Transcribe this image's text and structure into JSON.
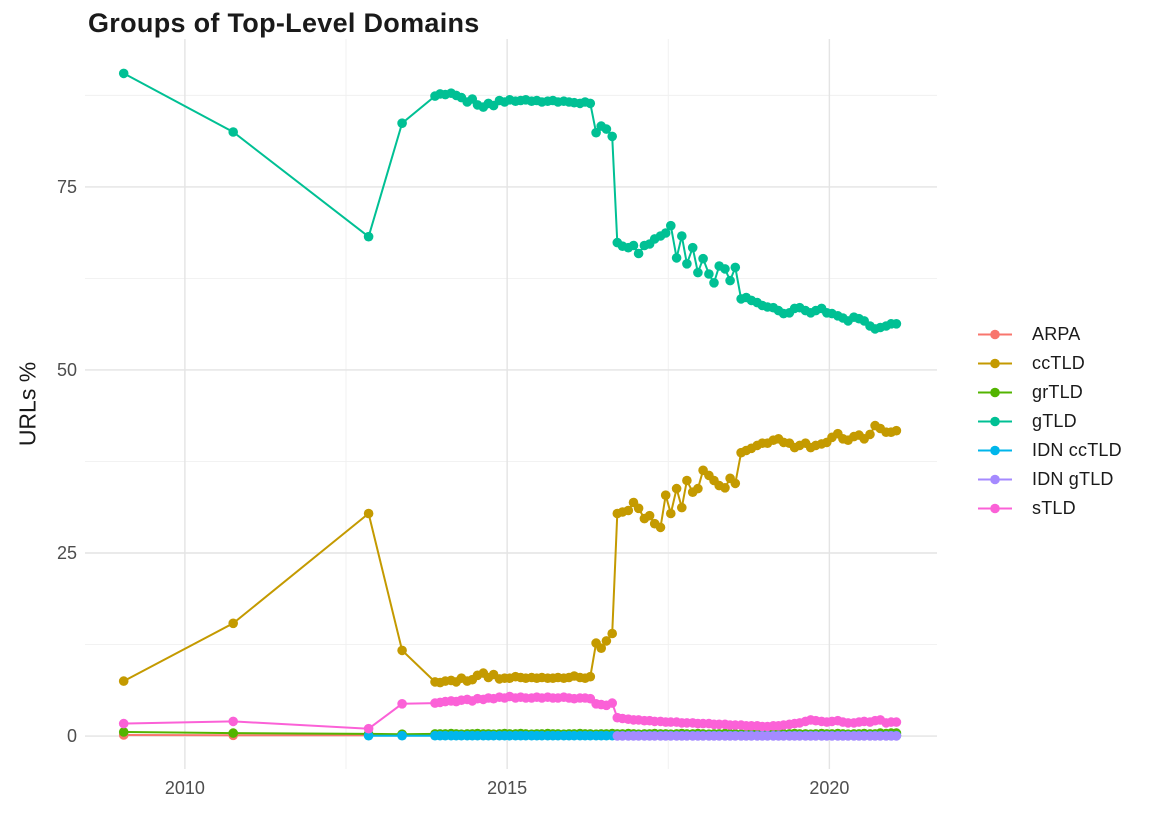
{
  "chart_data": {
    "type": "line",
    "title": "Groups of Top-Level Domains",
    "xlabel": "",
    "ylabel": "URLs %",
    "grid": true,
    "legend_position": "right",
    "xlim": [
      2008.45,
      2021.67
    ],
    "ylim": [
      -4.5,
      95.2
    ],
    "x_axis": {
      "ticks": [
        {
          "v": 2010,
          "label": "2010"
        },
        {
          "v": 2015,
          "label": "2015"
        },
        {
          "v": 2020,
          "label": "2020"
        }
      ],
      "minor": [
        2012.5,
        2017.5
      ]
    },
    "y_axis": {
      "title": "URLs %",
      "ticks": [
        {
          "v": 0,
          "label": "0"
        },
        {
          "v": 25,
          "label": "25"
        },
        {
          "v": 50,
          "label": "50"
        },
        {
          "v": 75,
          "label": "75"
        }
      ],
      "minor": [
        12.5,
        37.5,
        62.5,
        87.5
      ]
    },
    "x": [
      2009.05,
      2010.75,
      2012.85,
      2013.37,
      2013.88,
      2013.96,
      2014.04,
      2014.13,
      2014.21,
      2014.29,
      2014.38,
      2014.46,
      2014.54,
      2014.63,
      2014.71,
      2014.79,
      2014.88,
      2014.96,
      2015.04,
      2015.13,
      2015.21,
      2015.29,
      2015.38,
      2015.46,
      2015.54,
      2015.63,
      2015.71,
      2015.79,
      2015.88,
      2015.96,
      2016.04,
      2016.13,
      2016.21,
      2016.29,
      2016.38,
      2016.46,
      2016.54,
      2016.63,
      2016.71,
      2016.79,
      2016.88,
      2016.96,
      2017.04,
      2017.13,
      2017.21,
      2017.29,
      2017.38,
      2017.46,
      2017.54,
      2017.63,
      2017.71,
      2017.79,
      2017.88,
      2017.96,
      2018.04,
      2018.13,
      2018.21,
      2018.29,
      2018.38,
      2018.46,
      2018.54,
      2018.63,
      2018.71,
      2018.79,
      2018.88,
      2018.96,
      2019.04,
      2019.13,
      2019.21,
      2019.29,
      2019.38,
      2019.46,
      2019.54,
      2019.63,
      2019.71,
      2019.79,
      2019.88,
      2019.96,
      2020.04,
      2020.13,
      2020.21,
      2020.29,
      2020.38,
      2020.46,
      2020.54,
      2020.63,
      2020.71,
      2020.79,
      2020.88,
      2020.96,
      2021.04
    ],
    "series": [
      {
        "name": "ARPA",
        "color": "#F8766D",
        "values": [
          0.15,
          0.1,
          0.1,
          0.1,
          0.1,
          0.1,
          0.1,
          0.1,
          0.1,
          0.1,
          0.1,
          0.1,
          0.1,
          0.1,
          0.1,
          0.1,
          0.1,
          0.1,
          0.1,
          0.1,
          0.1,
          0.1,
          0.1,
          0.1,
          0.1,
          0.1,
          0.1,
          0.1,
          0.1,
          0.1,
          0.1,
          0.1,
          0.1,
          0.1,
          0.1,
          0.1,
          0.1,
          0.1,
          0.1,
          0.1,
          0.1,
          0.1,
          0.1,
          0.1,
          0.1,
          0.1,
          0.1,
          0.1,
          0.1,
          0.1,
          0.1,
          0.1,
          0.1,
          0.1,
          0.1,
          0.1,
          0.1,
          0.1,
          0.1,
          0.1,
          0.1,
          0.1,
          0.1,
          0.1,
          0.1,
          0.1,
          0.1,
          0.1,
          0.1,
          0.1,
          0.1,
          0.1,
          0.1,
          0.1,
          0.1,
          0.1,
          0.1,
          0.1,
          0.1,
          0.1,
          0.1,
          0.1,
          0.1,
          0.1,
          0.1,
          0.1,
          0.1,
          0.1,
          0.1,
          0.1,
          0.1
        ]
      },
      {
        "name": "ccTLD",
        "color": "#C49A00",
        "values": [
          7.5,
          15.4,
          30.4,
          11.7,
          7.4,
          7.3,
          7.5,
          7.6,
          7.4,
          7.9,
          7.5,
          7.7,
          8.3,
          8.6,
          8.0,
          8.4,
          7.8,
          7.9,
          7.9,
          8.1,
          8.0,
          7.9,
          8.0,
          7.9,
          8.0,
          7.9,
          7.9,
          8.0,
          7.9,
          8.0,
          8.2,
          8.0,
          7.9,
          8.1,
          12.7,
          12.0,
          13.0,
          14.0,
          30.4,
          30.6,
          30.8,
          31.9,
          31.1,
          29.7,
          30.1,
          29.0,
          28.5,
          32.9,
          30.4,
          33.8,
          31.2,
          34.9,
          33.3,
          33.8,
          36.3,
          35.6,
          34.9,
          34.2,
          33.9,
          35.2,
          34.5,
          38.7,
          39.0,
          39.3,
          39.7,
          40.0,
          40.0,
          40.4,
          40.6,
          40.1,
          40.0,
          39.4,
          39.7,
          40.0,
          39.4,
          39.7,
          39.9,
          40.1,
          40.8,
          41.3,
          40.6,
          40.4,
          40.9,
          41.1,
          40.6,
          41.2,
          42.4,
          42.0,
          41.5,
          41.5,
          41.7
        ]
      },
      {
        "name": "grTLD",
        "color": "#53B400",
        "values": [
          0.55,
          0.4,
          0.3,
          0.25,
          0.3,
          0.3,
          0.3,
          0.35,
          0.3,
          0.25,
          0.3,
          0.3,
          0.35,
          0.3,
          0.3,
          0.25,
          0.3,
          0.35,
          0.3,
          0.3,
          0.35,
          0.3,
          0.25,
          0.3,
          0.3,
          0.35,
          0.3,
          0.3,
          0.25,
          0.3,
          0.3,
          0.35,
          0.3,
          0.3,
          0.25,
          0.3,
          0.3,
          0.35,
          0.3,
          0.3,
          0.35,
          0.3,
          0.25,
          0.3,
          0.3,
          0.35,
          0.3,
          0.3,
          0.25,
          0.3,
          0.35,
          0.3,
          0.3,
          0.35,
          0.3,
          0.25,
          0.3,
          0.3,
          0.35,
          0.3,
          0.3,
          0.25,
          0.3,
          0.35,
          0.3,
          0.3,
          0.35,
          0.3,
          0.25,
          0.3,
          0.3,
          0.35,
          0.3,
          0.3,
          0.25,
          0.3,
          0.35,
          0.3,
          0.3,
          0.35,
          0.3,
          0.25,
          0.3,
          0.3,
          0.35,
          0.3,
          0.3,
          0.4,
          0.35,
          0.4,
          0.4
        ]
      },
      {
        "name": "gTLD",
        "color": "#00C094",
        "values": [
          90.5,
          82.5,
          68.2,
          83.7,
          87.4,
          87.7,
          87.6,
          87.8,
          87.5,
          87.2,
          86.6,
          87.0,
          86.2,
          85.9,
          86.4,
          86.1,
          86.8,
          86.6,
          86.9,
          86.7,
          86.8,
          86.9,
          86.7,
          86.8,
          86.6,
          86.7,
          86.8,
          86.6,
          86.7,
          86.6,
          86.5,
          86.4,
          86.6,
          86.4,
          82.4,
          83.3,
          82.9,
          81.9,
          67.4,
          66.9,
          66.7,
          67.0,
          65.9,
          67.0,
          67.2,
          67.9,
          68.3,
          68.7,
          69.7,
          65.3,
          68.3,
          64.5,
          66.7,
          63.3,
          65.2,
          63.1,
          61.9,
          64.2,
          63.8,
          62.2,
          64.0,
          59.7,
          59.9,
          59.5,
          59.2,
          58.8,
          58.6,
          58.5,
          58.1,
          57.7,
          57.8,
          58.4,
          58.5,
          58.1,
          57.8,
          58.1,
          58.4,
          57.8,
          57.7,
          57.4,
          57.1,
          56.7,
          57.2,
          57.0,
          56.7,
          56.0,
          55.6,
          55.8,
          56.0,
          56.3,
          56.3
        ]
      },
      {
        "name": "IDN ccTLD",
        "color": "#00B6EB",
        "values": [
          null,
          null,
          0.05,
          0.05,
          0.05,
          0.05,
          0.05,
          0.05,
          0.05,
          0.05,
          0.05,
          0.05,
          0.05,
          0.05,
          0.05,
          0.05,
          0.05,
          0.05,
          0.05,
          0.05,
          0.05,
          0.05,
          0.05,
          0.05,
          0.05,
          0.05,
          0.05,
          0.05,
          0.05,
          0.05,
          0.05,
          0.05,
          0.05,
          0.05,
          0.05,
          0.05,
          0.05,
          0.05,
          0.05,
          0.05,
          0.05,
          0.05,
          0.05,
          0.05,
          0.05,
          0.05,
          0.05,
          0.05,
          0.05,
          0.05,
          0.05,
          0.05,
          0.05,
          0.05,
          0.05,
          0.05,
          0.05,
          0.05,
          0.05,
          0.05,
          0.05,
          0.05,
          0.05,
          0.05,
          0.05,
          0.05,
          0.05,
          0.05,
          0.05,
          0.05,
          0.05,
          0.05,
          0.05,
          0.05,
          0.05,
          0.05,
          0.05,
          0.05,
          0.05,
          0.05,
          0.05,
          0.05,
          0.05,
          0.05,
          0.05,
          0.05,
          0.05,
          0.05,
          0.05,
          0.05,
          0.05
        ]
      },
      {
        "name": "IDN gTLD",
        "color": "#A58AFF",
        "values": [
          null,
          null,
          null,
          null,
          null,
          null,
          null,
          null,
          null,
          null,
          null,
          null,
          null,
          null,
          null,
          null,
          null,
          null,
          null,
          null,
          null,
          null,
          null,
          null,
          null,
          null,
          null,
          null,
          null,
          null,
          null,
          null,
          null,
          null,
          null,
          null,
          null,
          null,
          0.02,
          0.02,
          0.02,
          0.02,
          0.02,
          0.02,
          0.02,
          0.02,
          0.02,
          0.02,
          0.02,
          0.02,
          0.02,
          0.02,
          0.02,
          0.02,
          0.02,
          0.02,
          0.02,
          0.02,
          0.02,
          0.02,
          0.02,
          0.02,
          0.02,
          0.02,
          0.02,
          0.02,
          0.02,
          0.02,
          0.02,
          0.02,
          0.02,
          0.02,
          0.02,
          0.02,
          0.02,
          0.02,
          0.02,
          0.02,
          0.02,
          0.02,
          0.02,
          0.02,
          0.02,
          0.02,
          0.02,
          0.02,
          0.02,
          0.02,
          0.02,
          0.02,
          0.02
        ]
      },
      {
        "name": "sTLD",
        "color": "#FB61D7",
        "values": [
          1.7,
          2.0,
          1.0,
          4.4,
          4.5,
          4.6,
          4.7,
          4.8,
          4.7,
          4.9,
          5.0,
          4.8,
          5.1,
          5.0,
          5.2,
          5.1,
          5.3,
          5.2,
          5.4,
          5.2,
          5.3,
          5.2,
          5.2,
          5.3,
          5.2,
          5.3,
          5.2,
          5.2,
          5.3,
          5.2,
          5.1,
          5.2,
          5.2,
          5.1,
          4.4,
          4.3,
          4.2,
          4.5,
          2.5,
          2.4,
          2.3,
          2.2,
          2.2,
          2.1,
          2.1,
          2.0,
          2.0,
          1.9,
          1.9,
          1.9,
          1.8,
          1.8,
          1.8,
          1.7,
          1.7,
          1.7,
          1.6,
          1.6,
          1.6,
          1.5,
          1.5,
          1.5,
          1.4,
          1.4,
          1.4,
          1.3,
          1.3,
          1.4,
          1.4,
          1.5,
          1.6,
          1.7,
          1.8,
          2.0,
          2.2,
          2.1,
          2.0,
          1.9,
          2.0,
          2.1,
          1.9,
          1.8,
          1.8,
          1.9,
          2.0,
          1.9,
          2.1,
          2.2,
          1.8,
          1.9,
          1.9
        ]
      }
    ],
    "style": {
      "grid_major_color": "#E4E4E4",
      "grid_minor_color": "#F0F0F0",
      "background": "#FFFFFF",
      "tick_label_color": "#4D4D4D",
      "text_color": "#1A1A1A"
    }
  }
}
